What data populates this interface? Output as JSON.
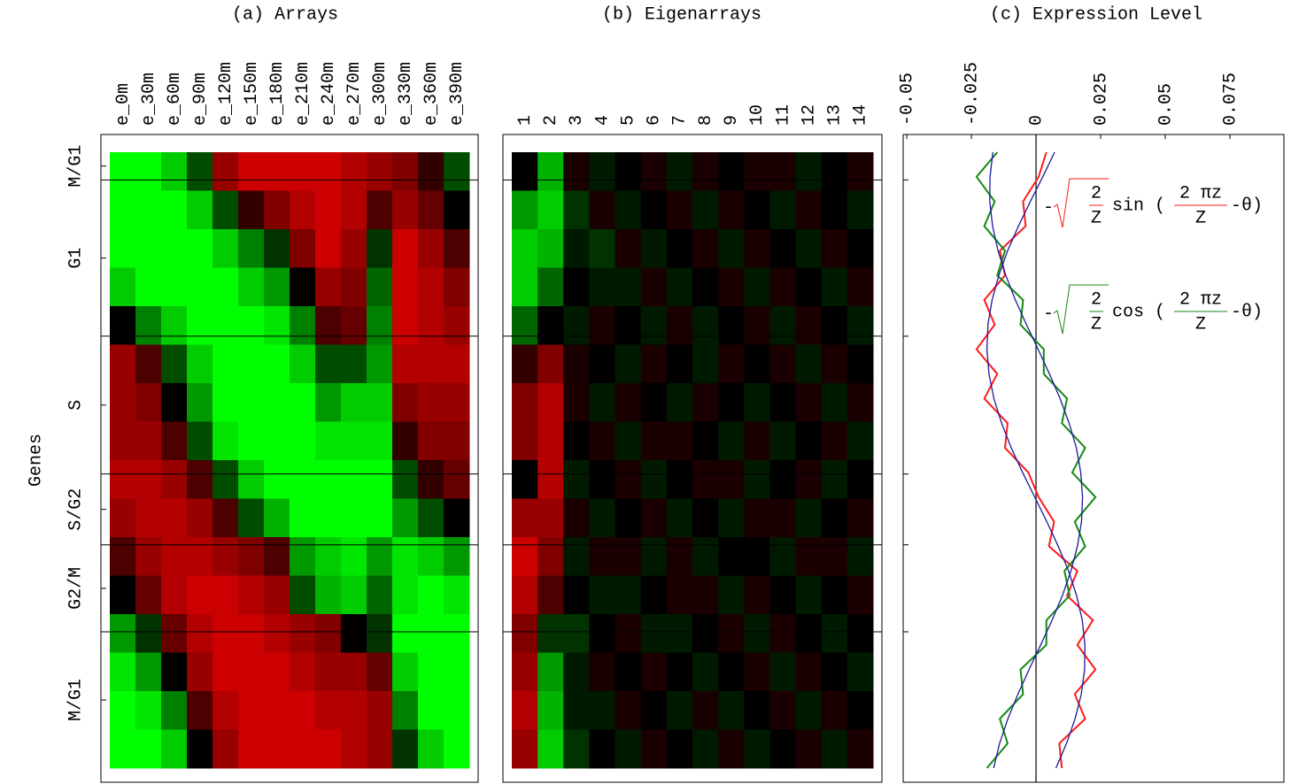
{
  "chart_data": [
    {
      "type": "heatmap",
      "title": "(a) Arrays",
      "ylabel": "Genes",
      "columns": [
        "e_0m",
        "e_30m",
        "e_60m",
        "e_90m",
        "e_120m",
        "e_150m",
        "e_180m",
        "e_210m",
        "e_240m",
        "e_270m",
        "e_300m",
        "e_330m",
        "e_360m",
        "e_390m"
      ],
      "ylim": [
        0,
        800
      ],
      "zlim": [
        -1,
        1
      ],
      "colors": {
        "negative": "#00ff00",
        "zero": "#000000",
        "positive": "#ff0000"
      },
      "phases": [
        {
          "label": "M/G1",
          "start": 0,
          "end": 36
        },
        {
          "label": "G1",
          "start": 36,
          "end": 239
        },
        {
          "label": "S",
          "start": 239,
          "end": 418
        },
        {
          "label": "S/G2",
          "start": 418,
          "end": 510
        },
        {
          "label": "G2/M",
          "start": 510,
          "end": 623
        },
        {
          "label": "M/G1",
          "start": 623,
          "end": 800
        }
      ],
      "values": [
        [
          -1,
          -1,
          -0.8,
          -0.3,
          0.6,
          0.8,
          0.8,
          0.8,
          0.8,
          0.7,
          0.6,
          0.5,
          0.2,
          -0.3
        ],
        [
          -1,
          -1,
          -1,
          -0.8,
          -0.3,
          0.2,
          0.5,
          0.7,
          0.8,
          0.7,
          0.3,
          0.6,
          0.4,
          0
        ],
        [
          -1,
          -1,
          -1,
          -1,
          -0.8,
          -0.5,
          -0.2,
          0.5,
          0.8,
          0.6,
          -0.2,
          0.8,
          0.6,
          0.3
        ],
        [
          -0.8,
          -1,
          -1,
          -1,
          -1,
          -0.8,
          -0.6,
          0,
          0.6,
          0.5,
          -0.4,
          0.8,
          0.7,
          0.5
        ],
        [
          0,
          -0.5,
          -0.8,
          -1,
          -1,
          -1,
          -0.9,
          -0.5,
          0.3,
          0.4,
          -0.5,
          0.8,
          0.7,
          0.6
        ],
        [
          0.6,
          0.3,
          -0.3,
          -0.8,
          -1,
          -1,
          -1,
          -0.8,
          -0.3,
          -0.3,
          -0.6,
          0.7,
          0.7,
          0.7
        ],
        [
          0.6,
          0.5,
          0,
          -0.6,
          -1,
          -1,
          -1,
          -1,
          -0.6,
          -0.8,
          -0.8,
          0.5,
          0.6,
          0.6
        ],
        [
          0.6,
          0.6,
          0.3,
          -0.3,
          -0.9,
          -1,
          -1,
          -1,
          -0.9,
          -0.9,
          -0.9,
          0.2,
          0.5,
          0.5
        ],
        [
          0.7,
          0.7,
          0.6,
          0.3,
          -0.3,
          -0.8,
          -1,
          -1,
          -1,
          -1,
          -1,
          -0.3,
          0.2,
          0.4
        ],
        [
          0.6,
          0.7,
          0.7,
          0.6,
          0.3,
          -0.3,
          -0.7,
          -1,
          -1,
          -1,
          -1,
          -0.6,
          -0.3,
          0
        ],
        [
          0.3,
          0.6,
          0.7,
          0.7,
          0.6,
          0.5,
          0.3,
          -0.6,
          -0.8,
          -0.9,
          -0.6,
          -0.9,
          -0.8,
          -0.6
        ],
        [
          0,
          0.4,
          0.7,
          0.8,
          0.8,
          0.7,
          0.6,
          -0.3,
          -0.7,
          -0.8,
          -0.4,
          -0.9,
          -1,
          -0.9
        ],
        [
          -0.6,
          -0.2,
          0.4,
          0.7,
          0.8,
          0.8,
          0.7,
          0.6,
          0.5,
          0,
          -0.2,
          -1,
          -1,
          -1
        ],
        [
          -0.9,
          -0.6,
          0,
          0.6,
          0.8,
          0.8,
          0.8,
          0.7,
          0.6,
          0.6,
          0.4,
          -0.8,
          -1,
          -1
        ],
        [
          -1,
          -0.9,
          -0.5,
          0.3,
          0.7,
          0.8,
          0.8,
          0.8,
          0.7,
          0.7,
          0.6,
          -0.5,
          -1,
          -1
        ],
        [
          -1,
          -1,
          -0.8,
          0,
          0.6,
          0.8,
          0.8,
          0.8,
          0.8,
          0.7,
          0.6,
          -0.2,
          -0.8,
          -1
        ]
      ]
    },
    {
      "type": "heatmap",
      "title": "(b) Eigenarrays",
      "columns": [
        "1",
        "2",
        "3",
        "4",
        "5",
        "6",
        "7",
        "8",
        "9",
        "10",
        "11",
        "12",
        "13",
        "14"
      ],
      "ylim": [
        0,
        800
      ],
      "zlim": [
        -1,
        1
      ],
      "colors": {
        "negative": "#00ff00",
        "zero": "#000000",
        "positive": "#ff0000"
      },
      "values": [
        [
          0,
          -0.7,
          0.1,
          -0.1,
          0,
          0.1,
          -0.1,
          0.1,
          0,
          0.1,
          0.1,
          -0.1,
          0,
          0.1
        ],
        [
          -0.6,
          -0.8,
          -0.2,
          0.1,
          -0.1,
          0,
          0.1,
          -0.1,
          0.1,
          0,
          -0.1,
          0.1,
          0,
          -0.1
        ],
        [
          -0.8,
          -0.7,
          -0.1,
          -0.2,
          0.1,
          -0.1,
          0,
          0.1,
          -0.1,
          0.1,
          0,
          -0.1,
          0.1,
          0
        ],
        [
          -0.8,
          -0.4,
          0,
          -0.1,
          -0.1,
          0.1,
          -0.1,
          0,
          0.1,
          -0.1,
          0.1,
          0,
          -0.1,
          0.1
        ],
        [
          -0.4,
          0,
          -0.1,
          0.1,
          0,
          -0.1,
          0.1,
          -0.1,
          0,
          0.1,
          -0.1,
          0.1,
          0,
          -0.1
        ],
        [
          0.2,
          0.5,
          0.1,
          0,
          -0.1,
          0.1,
          0,
          -0.1,
          0.1,
          0,
          0.1,
          -0.1,
          0.1,
          0
        ],
        [
          0.5,
          0.7,
          0.1,
          -0.1,
          0.1,
          0,
          -0.1,
          0.1,
          0,
          -0.1,
          0,
          0.1,
          -0.1,
          0.1
        ],
        [
          0.5,
          0.7,
          0,
          0.1,
          -0.1,
          0.1,
          0.1,
          0,
          -0.1,
          0.1,
          -0.1,
          0,
          0.1,
          -0.1
        ],
        [
          0,
          0.7,
          -0.1,
          0,
          0.1,
          -0.1,
          0,
          0.1,
          0.1,
          -0.1,
          0,
          0.1,
          -0.1,
          0
        ],
        [
          0.6,
          0.6,
          0.1,
          -0.1,
          0,
          0.1,
          -0.1,
          0,
          -0.1,
          0.1,
          0.1,
          -0.1,
          0,
          0.1
        ],
        [
          0.8,
          0.5,
          -0.1,
          0.1,
          0.1,
          -0.1,
          0.1,
          -0.1,
          0,
          0,
          -0.1,
          0.1,
          0.1,
          -0.1
        ],
        [
          0.7,
          0.3,
          0,
          -0.1,
          -0.1,
          0,
          0.1,
          0.1,
          -0.1,
          0.1,
          0,
          -0.1,
          0,
          0.1
        ],
        [
          0.5,
          -0.2,
          -0.2,
          0,
          0.1,
          -0.1,
          -0.1,
          0,
          0.1,
          -0.1,
          0.1,
          0,
          -0.1,
          0
        ],
        [
          0.6,
          -0.6,
          -0.1,
          0.1,
          0,
          0.1,
          0,
          -0.1,
          0,
          0.1,
          -0.1,
          0.1,
          0,
          -0.1
        ],
        [
          0.7,
          -0.7,
          -0.1,
          -0.1,
          0.1,
          0,
          -0.1,
          0.1,
          -0.1,
          0,
          0.1,
          -0.1,
          0.1,
          0
        ],
        [
          0.6,
          -0.8,
          -0.2,
          0,
          -0.1,
          0.1,
          0,
          -0.1,
          0.1,
          -0.1,
          0,
          0.1,
          -0.1,
          0.1
        ]
      ]
    },
    {
      "type": "line",
      "title": "(c) Expression Level",
      "x": [
        0,
        32,
        64,
        96,
        128,
        160,
        192,
        224,
        256,
        288,
        320,
        352,
        384,
        416,
        448,
        480,
        512,
        544,
        576,
        608,
        640,
        672,
        704,
        736,
        768,
        800
      ],
      "xlim": [
        0,
        800
      ],
      "ylim": [
        -0.0514,
        0.0959
      ],
      "yticks": [
        -0.05,
        -0.025,
        0,
        0.025,
        0.05,
        0.075
      ],
      "series": [
        {
          "color": "#ff1a1a",
          "values": [
            0.004,
            0.001,
            -0.005,
            -0.004,
            -0.014,
            -0.012,
            -0.02,
            -0.016,
            -0.023,
            -0.015,
            -0.02,
            -0.011,
            -0.012,
            -0.003,
            0.001,
            0.007,
            0.005,
            0.016,
            0.012,
            0.022,
            0.016,
            0.023,
            0.015,
            0.019,
            0.009,
            0.01
          ]
        },
        {
          "color": "#138a13",
          "values": [
            -0.015,
            -0.023,
            -0.016,
            -0.02,
            -0.012,
            -0.015,
            -0.005,
            -0.006,
            0.003,
            0.003,
            0.012,
            0.01,
            0.019,
            0.014,
            0.023,
            0.015,
            0.019,
            0.011,
            0.013,
            0.004,
            0.004,
            -0.006,
            -0.005,
            -0.014,
            -0.011,
            -0.019
          ]
        },
        {
          "color": "#1a1aa0",
          "values": [
            0.0072,
            0.0026,
            -0.0022,
            -0.0068,
            -0.011,
            -0.0144,
            -0.017,
            -0.0186,
            -0.019,
            -0.0182,
            -0.0163,
            -0.0133,
            -0.0096,
            -0.0052,
            -0.0005,
            0.0042,
            0.0086,
            0.0126,
            0.0157,
            0.0179,
            0.0189,
            0.0188,
            0.0175,
            0.0151,
            0.0118,
            0.0077
          ]
        },
        {
          "color": "#1a1aa0",
          "values": [
            -0.0167,
            -0.0178,
            -0.0179,
            -0.0168,
            -0.0147,
            -0.0117,
            -0.008,
            -0.0037,
            0.0008,
            0.0052,
            0.0093,
            0.0128,
            0.0156,
            0.0173,
            0.018,
            0.0176,
            0.016,
            0.0135,
            0.0102,
            0.0062,
            0.0018,
            -0.0027,
            -0.007,
            -0.0109,
            -0.0141,
            -0.0164
          ]
        }
      ],
      "annotations": [
        {
          "color": "#ff1a1a",
          "minus": "-",
          "num": "2",
          "den": "Z",
          "func": "sin (",
          "arg_num": "2 πz",
          "arg_den": "Z",
          "tail": "-θ)"
        },
        {
          "color": "#138a13",
          "minus": "-",
          "num": "2",
          "den": "Z",
          "func": "cos (",
          "arg_num": "2 πz",
          "arg_den": "Z",
          "tail": "-θ)"
        }
      ]
    }
  ]
}
